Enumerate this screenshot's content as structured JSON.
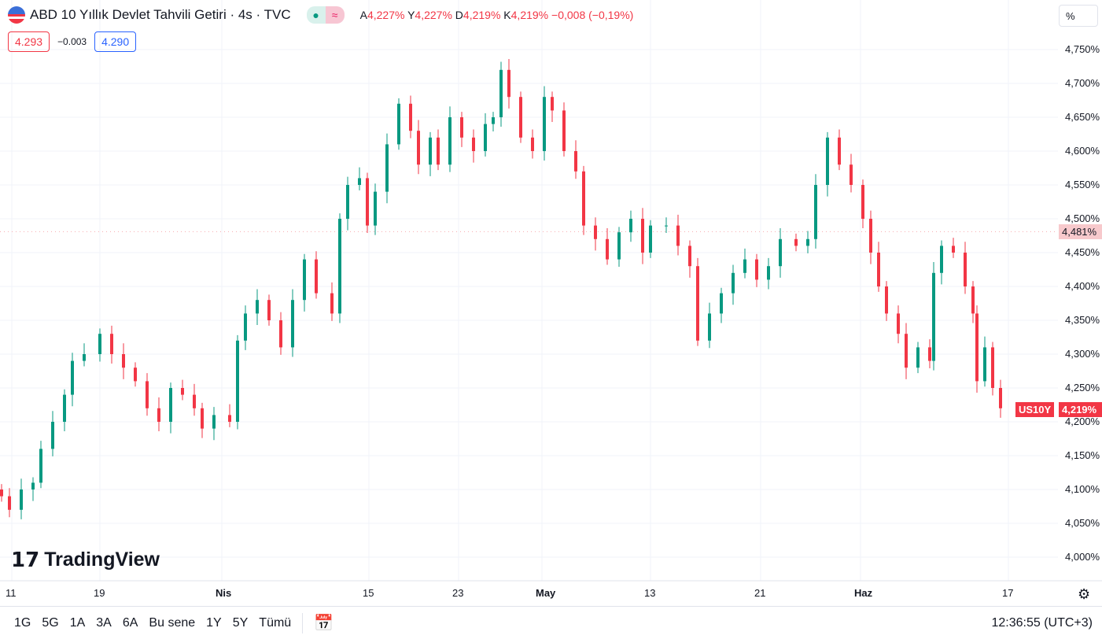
{
  "header": {
    "title": "ABD 10 Yıllık Devlet Tahvili Getiri · 4s · TVC",
    "open_label": "A",
    "open": "4,227%",
    "high_label": "Y",
    "high": "4,227%",
    "low_label": "D",
    "low": "4,219%",
    "close_label": "K",
    "close": "4,219%",
    "change": "−0,008 (−0,19%)",
    "status_icon": "market-open-dot",
    "delay_icon": "approx-icon"
  },
  "quote": {
    "bid": "4.293",
    "spread": "−0.003",
    "ask": "4.290"
  },
  "axis": {
    "unit": "%",
    "y_ticks": [
      "4,750%",
      "4,700%",
      "4,650%",
      "4,600%",
      "4,550%",
      "4,500%",
      "4,450%",
      "4,400%",
      "4,350%",
      "4,300%",
      "4,250%",
      "4,200%",
      "4,150%",
      "4,100%",
      "4,050%",
      "4,000%"
    ],
    "x_ticks": [
      "11",
      "19",
      "Nis",
      "15",
      "23",
      "May",
      "13",
      "21",
      "Haz",
      "17"
    ],
    "prev_close_label": "4,481%",
    "symbol_tag": "US10Y",
    "last_price_label": "4,219%"
  },
  "logo": "TradingView",
  "bottom": {
    "ranges": [
      "1G",
      "5G",
      "1A",
      "3A",
      "6A",
      "Bu sene",
      "1Y",
      "5Y",
      "Tümü"
    ],
    "time": "12:36:55 (UTC+3)"
  },
  "colors": {
    "up": "#089981",
    "down": "#f23645",
    "blue": "#2962ff"
  },
  "chart_data": {
    "type": "candlestick",
    "ylim": [
      4.0,
      4.75
    ],
    "prev_close": 4.481,
    "last": 4.219,
    "series": [
      [
        0,
        4.09
      ],
      [
        2,
        4.07
      ],
      [
        5,
        4.1
      ],
      [
        8,
        4.11
      ],
      [
        10,
        4.16
      ],
      [
        13,
        4.2
      ],
      [
        16,
        4.24
      ],
      [
        18,
        4.29
      ],
      [
        21,
        4.3
      ],
      [
        25,
        4.33
      ],
      [
        28,
        4.3
      ],
      [
        31,
        4.28
      ],
      [
        34,
        4.26
      ],
      [
        37,
        4.22
      ],
      [
        40,
        4.2
      ],
      [
        43,
        4.25
      ],
      [
        46,
        4.24
      ],
      [
        49,
        4.22
      ],
      [
        51,
        4.19
      ],
      [
        54,
        4.21
      ],
      [
        58,
        4.2
      ],
      [
        60,
        4.32
      ],
      [
        62,
        4.36
      ],
      [
        65,
        4.38
      ],
      [
        68,
        4.35
      ],
      [
        71,
        4.31
      ],
      [
        74,
        4.38
      ],
      [
        77,
        4.44
      ],
      [
        80,
        4.39
      ],
      [
        84,
        4.36
      ],
      [
        86,
        4.5
      ],
      [
        88,
        4.55
      ],
      [
        91,
        4.56
      ],
      [
        93,
        4.49
      ],
      [
        95,
        4.54
      ],
      [
        98,
        4.61
      ],
      [
        101,
        4.67
      ],
      [
        104,
        4.63
      ],
      [
        106,
        4.58
      ],
      [
        109,
        4.62
      ],
      [
        111,
        4.58
      ],
      [
        114,
        4.65
      ],
      [
        117,
        4.62
      ],
      [
        120,
        4.6
      ],
      [
        123,
        4.64
      ],
      [
        125,
        4.65
      ],
      [
        127,
        4.72
      ],
      [
        129,
        4.68
      ],
      [
        132,
        4.62
      ],
      [
        135,
        4.6
      ],
      [
        138,
        4.68
      ],
      [
        140,
        4.66
      ],
      [
        143,
        4.6
      ],
      [
        146,
        4.57
      ],
      [
        148,
        4.49
      ],
      [
        151,
        4.47
      ],
      [
        154,
        4.44
      ],
      [
        157,
        4.48
      ],
      [
        160,
        4.5
      ],
      [
        163,
        4.45
      ],
      [
        165,
        4.49
      ],
      [
        169,
        4.49
      ],
      [
        172,
        4.46
      ],
      [
        175,
        4.43
      ],
      [
        177,
        4.32
      ],
      [
        180,
        4.36
      ],
      [
        183,
        4.39
      ],
      [
        186,
        4.42
      ],
      [
        189,
        4.44
      ],
      [
        192,
        4.41
      ],
      [
        195,
        4.43
      ],
      [
        198,
        4.47
      ],
      [
        202,
        4.46
      ],
      [
        205,
        4.47
      ],
      [
        207,
        4.55
      ],
      [
        210,
        4.62
      ],
      [
        213,
        4.58
      ],
      [
        216,
        4.55
      ],
      [
        219,
        4.5
      ],
      [
        221,
        4.45
      ],
      [
        223,
        4.4
      ],
      [
        225,
        4.36
      ],
      [
        228,
        4.33
      ],
      [
        230,
        4.28
      ],
      [
        233,
        4.31
      ],
      [
        236,
        4.29
      ],
      [
        237,
        4.42
      ],
      [
        239,
        4.46
      ],
      [
        242,
        4.45
      ],
      [
        245,
        4.4
      ],
      [
        247,
        4.36
      ],
      [
        248,
        4.26
      ],
      [
        250,
        4.31
      ],
      [
        252,
        4.25
      ],
      [
        254,
        4.22
      ]
    ]
  }
}
